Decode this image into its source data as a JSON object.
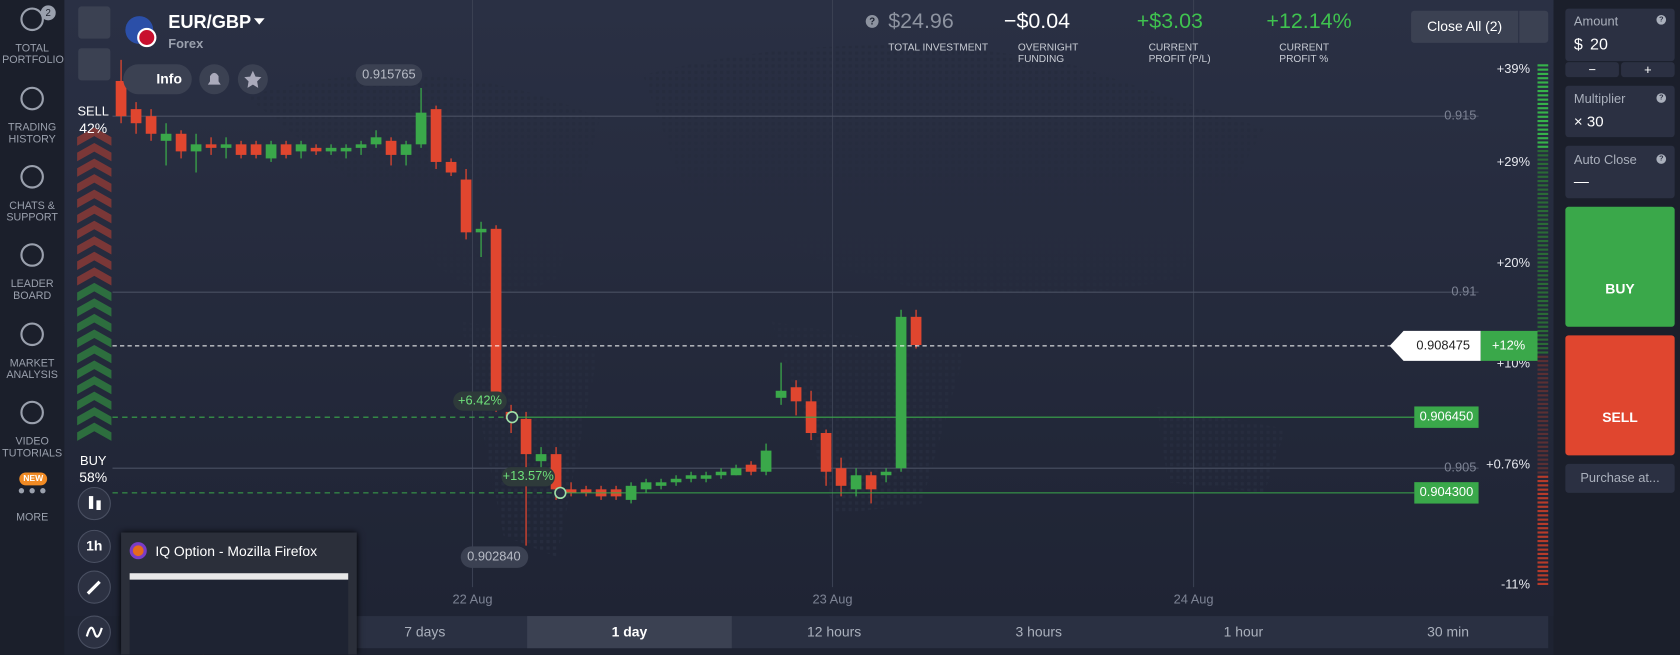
{
  "sidebar": [
    {
      "label": "TOTAL PORTFOLIO",
      "badge": "2"
    },
    {
      "label": "TRADING HISTORY"
    },
    {
      "label": "CHATS & SUPPORT"
    },
    {
      "label": "LEADER BOARD"
    },
    {
      "label": "MARKET ANALYSIS"
    },
    {
      "label": "VIDEO TUTORIALS"
    },
    {
      "label": "MORE",
      "badge": "NEW"
    }
  ],
  "asset": {
    "name": "EUR/GBP",
    "type": "Forex"
  },
  "help_icon": "?",
  "stats": [
    {
      "value": "$24.96",
      "label": "TOTAL INVESTMENT"
    },
    {
      "value": "−$0.04",
      "label": "OVERNIGHT FUNDING"
    },
    {
      "value": "+$3.03",
      "label": "CURRENT PROFIT (P/L)"
    },
    {
      "value": "+12.14%",
      "label": "CURRENT PROFIT %"
    }
  ],
  "close_all": "Close All (2)",
  "info": "Info",
  "sentiment": {
    "sell_label": "SELL",
    "sell": "42%",
    "buy_label": "BUY",
    "buy": "58%"
  },
  "timeframe": "1h",
  "chart": {
    "up_color": "#3aa84a",
    "down_color": "#e0462f",
    "ylim": [
      0.9008,
      0.9183
    ],
    "yticks": [
      0.915,
      0.91,
      {
        "value": 0.905,
        "label": "0.905"
      }
    ],
    "percent_labels": [
      "+39%",
      "+29%",
      "+20%",
      "+10%",
      "+0.76%",
      "-11%"
    ],
    "dates": [
      "22 Aug",
      "23 Aug",
      "24 Aug"
    ],
    "high": 0.915765,
    "low": {
      "value": 0.90284,
      "label": "0.902840"
    },
    "current_price": 0.908475,
    "current_profit": "+12%",
    "positions": [
      {
        "price": {
          "value": 0.90645,
          "label": "0.906450"
        },
        "profit": "+6.42%"
      },
      {
        "price": {
          "value": 0.9043,
          "label": "0.904300"
        },
        "profit": "+13.57%"
      }
    ],
    "candles": {
      "open": [
        0.916,
        0.9152,
        0.915,
        0.9143,
        0.9145,
        0.914,
        0.9142,
        0.9141,
        0.9142,
        0.9142,
        0.9138,
        0.9142,
        0.914,
        0.9141,
        0.914,
        0.914,
        0.9141,
        0.9142,
        0.9143,
        0.9139,
        0.9142,
        0.9152,
        0.9137,
        0.9132,
        0.9117,
        0.9118,
        0.9066,
        0.9064,
        0.9052,
        0.9054,
        0.9044,
        0.9044,
        0.9044,
        0.9044,
        0.9041,
        0.9044,
        0.9045,
        0.9046,
        0.9047,
        0.9047,
        0.9048,
        0.9048,
        0.9051,
        0.9049,
        0.907,
        0.9073,
        0.9069,
        0.906,
        0.905,
        0.9044,
        0.9048,
        0.9048,
        0.905,
        0.9093
      ],
      "high": [
        0.9166,
        0.9154,
        0.9152,
        0.9148,
        0.9146,
        0.9145,
        0.9144,
        0.9144,
        0.9143,
        0.9143,
        0.9143,
        0.9143,
        0.9143,
        0.9142,
        0.9142,
        0.9142,
        0.9143,
        0.9146,
        0.9144,
        0.9143,
        0.9158,
        0.9153,
        0.9138,
        0.9135,
        0.912,
        0.9119,
        0.9068,
        0.9066,
        0.9056,
        0.9056,
        0.9046,
        0.9045,
        0.9045,
        0.9045,
        0.9046,
        0.9047,
        0.9047,
        0.9048,
        0.9049,
        0.9049,
        0.905,
        0.9051,
        0.9052,
        0.9057,
        0.908,
        0.9075,
        0.9072,
        0.9061,
        0.9053,
        0.905,
        0.9049,
        0.905,
        0.9095,
        0.9095
      ],
      "low": [
        0.9148,
        0.9145,
        0.9143,
        0.9136,
        0.9138,
        0.9134,
        0.9139,
        0.9138,
        0.9138,
        0.9138,
        0.9137,
        0.9138,
        0.9138,
        0.9139,
        0.9139,
        0.9138,
        0.9139,
        0.9141,
        0.9136,
        0.9136,
        0.9141,
        0.9135,
        0.9133,
        0.9115,
        0.911,
        0.9066,
        0.906,
        0.9028,
        0.905,
        0.9041,
        0.9042,
        0.9042,
        0.9041,
        0.9041,
        0.904,
        0.9043,
        0.9044,
        0.9045,
        0.9046,
        0.9046,
        0.9047,
        0.9048,
        0.9048,
        0.9048,
        0.9068,
        0.9065,
        0.9058,
        0.9045,
        0.9042,
        0.9042,
        0.904,
        0.9046,
        0.9049,
        0.9084
      ],
      "close": [
        0.915,
        0.9148,
        0.9145,
        0.9145,
        0.914,
        0.9142,
        0.9141,
        0.9142,
        0.9139,
        0.9139,
        0.9142,
        0.9139,
        0.9142,
        0.914,
        0.9141,
        0.9141,
        0.9142,
        0.9144,
        0.9139,
        0.9142,
        0.9151,
        0.9137,
        0.9134,
        0.9117,
        0.9118,
        0.9067,
        0.9064,
        0.9054,
        0.9054,
        0.9044,
        0.9043,
        0.9043,
        0.9042,
        0.9042,
        0.9045,
        0.9046,
        0.9046,
        0.9047,
        0.9048,
        0.9048,
        0.9049,
        0.905,
        0.9049,
        0.9055,
        0.9072,
        0.9069,
        0.906,
        0.9049,
        0.9045,
        0.9048,
        0.9044,
        0.9049,
        0.9093,
        0.9085
      ]
    }
  },
  "periods": [
    "7 days",
    "1 day",
    "12 hours",
    "3 hours",
    "1 hour",
    "30 min"
  ],
  "active_period": 1,
  "popup": {
    "title": "IQ Option - Mozilla Firefox"
  },
  "trade": {
    "amount_label": "Amount",
    "currency": "$",
    "amount": "20",
    "minus": "−",
    "plus": "+",
    "multiplier_label": "Multiplier",
    "multiplier": "× 30",
    "auto_close_label": "Auto Close",
    "auto_close": "—",
    "buy": "BUY",
    "sell": "SELL",
    "purchase": "Purchase at..."
  }
}
